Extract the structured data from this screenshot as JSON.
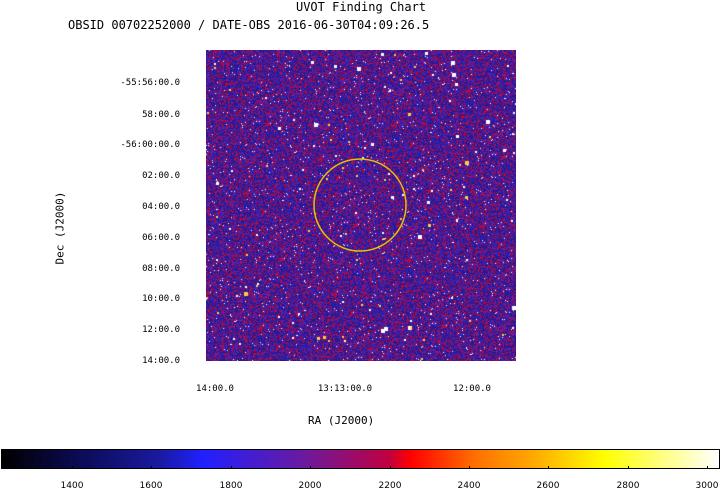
{
  "title": "UVOT Finding Chart",
  "subtitle": "OBSID 00702252000 / DATE-OBS 2016-06-30T04:09:26.5",
  "axes": {
    "ylabel": "Dec (J2000)",
    "xlabel": "RA (J2000)",
    "dec_ticks": [
      "-55:56:00.0",
      "58:00.0",
      "-56:00:00.0",
      "02:00.0",
      "04:00.0",
      "06:00.0",
      "08:00.0",
      "10:00.0",
      "12:00.0",
      "14:00.0"
    ],
    "ra_ticks": [
      "14:00.0",
      "13:13:00.0",
      "12:00.0"
    ]
  },
  "colorbar": {
    "ticks": [
      "1400",
      "1600",
      "1800",
      "2000",
      "2200",
      "2400",
      "2600",
      "2800",
      "3000"
    ],
    "range": [
      1250,
      3020
    ]
  },
  "colors": {
    "circle": "#e8c000",
    "background": "#2a1fa0"
  }
}
